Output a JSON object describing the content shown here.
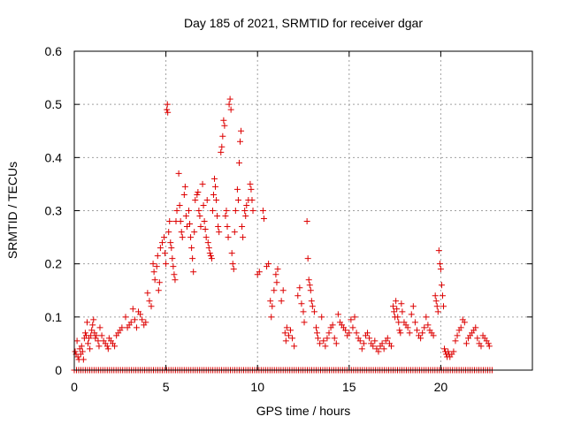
{
  "chart_data": {
    "type": "scatter",
    "title": "Day 185 of 2021, SRMTID for receiver dgar",
    "xlabel": "GPS time / hours",
    "ylabel": "SRMTID / TECUs",
    "xlim": [
      0,
      25
    ],
    "ylim": [
      0,
      0.6
    ],
    "grid": true,
    "marker": "+",
    "color": "#dd0000",
    "xticks": [
      0,
      5,
      10,
      15,
      20
    ],
    "xtick_labels": [
      "0",
      "5",
      "10",
      "15",
      "20"
    ],
    "yticks": [
      0,
      0.1,
      0.2,
      0.3,
      0.4,
      0.5,
      0.6
    ],
    "ytick_labels": [
      "0",
      "0.1",
      "0.2",
      "0.3",
      "0.4",
      "0.5",
      "0.6"
    ],
    "series": [
      {
        "name": "SRMTID",
        "points": [
          [
            0.05,
            0.035
          ],
          [
            0.1,
            0.03
          ],
          [
            0.15,
            0.055
          ],
          [
            0.2,
            0.025
          ],
          [
            0.25,
            0.02
          ],
          [
            0.3,
            0.04
          ],
          [
            0.35,
            0.03
          ],
          [
            0.4,
            0.045
          ],
          [
            0.45,
            0.035
          ],
          [
            0.5,
            0.02
          ],
          [
            0.55,
            0.06
          ],
          [
            0.6,
            0.07
          ],
          [
            0.65,
            0.065
          ],
          [
            0.7,
            0.09
          ],
          [
            0.75,
            0.05
          ],
          [
            0.8,
            0.06
          ],
          [
            0.85,
            0.04
          ],
          [
            0.9,
            0.065
          ],
          [
            0.95,
            0.075
          ],
          [
            1.0,
            0.085
          ],
          [
            1.05,
            0.095
          ],
          [
            1.1,
            0.07
          ],
          [
            1.15,
            0.06
          ],
          [
            1.2,
            0.065
          ],
          [
            1.3,
            0.055
          ],
          [
            1.35,
            0.045
          ],
          [
            1.4,
            0.08
          ],
          [
            1.5,
            0.065
          ],
          [
            1.6,
            0.055
          ],
          [
            1.7,
            0.05
          ],
          [
            1.8,
            0.045
          ],
          [
            1.85,
            0.04
          ],
          [
            1.9,
            0.06
          ],
          [
            2.0,
            0.055
          ],
          [
            2.1,
            0.05
          ],
          [
            2.2,
            0.045
          ],
          [
            2.3,
            0.065
          ],
          [
            2.4,
            0.07
          ],
          [
            2.5,
            0.075
          ],
          [
            2.6,
            0.08
          ],
          [
            2.8,
            0.1
          ],
          [
            2.9,
            0.08
          ],
          [
            3.0,
            0.085
          ],
          [
            3.1,
            0.09
          ],
          [
            3.2,
            0.115
          ],
          [
            3.3,
            0.095
          ],
          [
            3.4,
            0.08
          ],
          [
            3.5,
            0.11
          ],
          [
            3.6,
            0.105
          ],
          [
            3.7,
            0.095
          ],
          [
            3.8,
            0.085
          ],
          [
            3.9,
            0.09
          ],
          [
            4.0,
            0.145
          ],
          [
            4.1,
            0.13
          ],
          [
            4.2,
            0.12
          ],
          [
            4.3,
            0.2
          ],
          [
            4.35,
            0.185
          ],
          [
            4.4,
            0.17
          ],
          [
            4.5,
            0.195
          ],
          [
            4.55,
            0.215
          ],
          [
            4.6,
            0.15
          ],
          [
            4.65,
            0.165
          ],
          [
            4.7,
            0.23
          ],
          [
            4.8,
            0.24
          ],
          [
            4.9,
            0.25
          ],
          [
            4.95,
            0.22
          ],
          [
            5.0,
            0.2
          ],
          [
            5.05,
            0.49
          ],
          [
            5.08,
            0.5
          ],
          [
            5.1,
            0.485
          ],
          [
            5.15,
            0.26
          ],
          [
            5.2,
            0.28
          ],
          [
            5.25,
            0.24
          ],
          [
            5.3,
            0.23
          ],
          [
            5.35,
            0.21
          ],
          [
            5.4,
            0.195
          ],
          [
            5.45,
            0.18
          ],
          [
            5.5,
            0.17
          ],
          [
            5.55,
            0.28
          ],
          [
            5.6,
            0.3
          ],
          [
            5.7,
            0.37
          ],
          [
            5.75,
            0.31
          ],
          [
            5.8,
            0.28
          ],
          [
            5.85,
            0.26
          ],
          [
            5.9,
            0.25
          ],
          [
            6.0,
            0.33
          ],
          [
            6.05,
            0.345
          ],
          [
            6.1,
            0.29
          ],
          [
            6.15,
            0.27
          ],
          [
            6.25,
            0.3
          ],
          [
            6.3,
            0.275
          ],
          [
            6.35,
            0.25
          ],
          [
            6.4,
            0.23
          ],
          [
            6.45,
            0.21
          ],
          [
            6.5,
            0.185
          ],
          [
            6.55,
            0.26
          ],
          [
            6.6,
            0.32
          ],
          [
            6.7,
            0.33
          ],
          [
            6.75,
            0.335
          ],
          [
            6.8,
            0.3
          ],
          [
            6.85,
            0.29
          ],
          [
            6.9,
            0.27
          ],
          [
            7.0,
            0.35
          ],
          [
            7.05,
            0.31
          ],
          [
            7.1,
            0.28
          ],
          [
            7.15,
            0.265
          ],
          [
            7.2,
            0.25
          ],
          [
            7.25,
            0.32
          ],
          [
            7.3,
            0.24
          ],
          [
            7.35,
            0.23
          ],
          [
            7.4,
            0.22
          ],
          [
            7.45,
            0.215
          ],
          [
            7.5,
            0.21
          ],
          [
            7.55,
            0.3
          ],
          [
            7.6,
            0.33
          ],
          [
            7.65,
            0.36
          ],
          [
            7.7,
            0.345
          ],
          [
            7.75,
            0.32
          ],
          [
            7.8,
            0.29
          ],
          [
            7.85,
            0.27
          ],
          [
            7.9,
            0.26
          ],
          [
            8.0,
            0.41
          ],
          [
            8.05,
            0.42
          ],
          [
            8.1,
            0.44
          ],
          [
            8.15,
            0.47
          ],
          [
            8.2,
            0.46
          ],
          [
            8.25,
            0.29
          ],
          [
            8.3,
            0.3
          ],
          [
            8.35,
            0.27
          ],
          [
            8.4,
            0.25
          ],
          [
            8.45,
            0.5
          ],
          [
            8.5,
            0.51
          ],
          [
            8.55,
            0.49
          ],
          [
            8.6,
            0.22
          ],
          [
            8.65,
            0.2
          ],
          [
            8.7,
            0.19
          ],
          [
            8.75,
            0.26
          ],
          [
            8.8,
            0.3
          ],
          [
            8.9,
            0.34
          ],
          [
            8.95,
            0.32
          ],
          [
            9.0,
            0.39
          ],
          [
            9.05,
            0.43
          ],
          [
            9.1,
            0.45
          ],
          [
            9.15,
            0.27
          ],
          [
            9.2,
            0.25
          ],
          [
            9.3,
            0.3
          ],
          [
            9.35,
            0.29
          ],
          [
            9.4,
            0.31
          ],
          [
            9.5,
            0.32
          ],
          [
            9.6,
            0.35
          ],
          [
            9.65,
            0.34
          ],
          [
            9.7,
            0.32
          ],
          [
            9.75,
            0.3
          ],
          [
            10.0,
            0.18
          ],
          [
            10.1,
            0.185
          ],
          [
            10.3,
            0.3
          ],
          [
            10.35,
            0.285
          ],
          [
            10.5,
            0.195
          ],
          [
            10.6,
            0.2
          ],
          [
            10.7,
            0.13
          ],
          [
            10.75,
            0.1
          ],
          [
            10.8,
            0.12
          ],
          [
            10.9,
            0.15
          ],
          [
            11.0,
            0.18
          ],
          [
            11.05,
            0.165
          ],
          [
            11.1,
            0.19
          ],
          [
            11.3,
            0.13
          ],
          [
            11.4,
            0.15
          ],
          [
            11.5,
            0.07
          ],
          [
            11.55,
            0.055
          ],
          [
            11.6,
            0.08
          ],
          [
            11.7,
            0.065
          ],
          [
            11.8,
            0.075
          ],
          [
            11.9,
            0.06
          ],
          [
            12.0,
            0.045
          ],
          [
            12.2,
            0.14
          ],
          [
            12.3,
            0.155
          ],
          [
            12.4,
            0.125
          ],
          [
            12.5,
            0.11
          ],
          [
            12.55,
            0.09
          ],
          [
            12.7,
            0.28
          ],
          [
            12.75,
            0.21
          ],
          [
            12.8,
            0.17
          ],
          [
            12.85,
            0.16
          ],
          [
            12.9,
            0.15
          ],
          [
            12.95,
            0.13
          ],
          [
            13.0,
            0.12
          ],
          [
            13.1,
            0.11
          ],
          [
            13.2,
            0.08
          ],
          [
            13.25,
            0.07
          ],
          [
            13.3,
            0.06
          ],
          [
            13.4,
            0.05
          ],
          [
            13.5,
            0.1
          ],
          [
            13.6,
            0.055
          ],
          [
            13.7,
            0.045
          ],
          [
            13.8,
            0.06
          ],
          [
            13.9,
            0.07
          ],
          [
            14.0,
            0.08
          ],
          [
            14.1,
            0.085
          ],
          [
            14.2,
            0.06
          ],
          [
            14.3,
            0.05
          ],
          [
            14.4,
            0.105
          ],
          [
            14.5,
            0.09
          ],
          [
            14.6,
            0.085
          ],
          [
            14.7,
            0.08
          ],
          [
            14.8,
            0.075
          ],
          [
            14.9,
            0.065
          ],
          [
            15.0,
            0.07
          ],
          [
            15.1,
            0.095
          ],
          [
            15.2,
            0.08
          ],
          [
            15.3,
            0.1
          ],
          [
            15.4,
            0.07
          ],
          [
            15.5,
            0.06
          ],
          [
            15.6,
            0.055
          ],
          [
            15.7,
            0.04
          ],
          [
            15.8,
            0.05
          ],
          [
            15.9,
            0.065
          ],
          [
            16.0,
            0.07
          ],
          [
            16.1,
            0.06
          ],
          [
            16.2,
            0.05
          ],
          [
            16.3,
            0.045
          ],
          [
            16.4,
            0.055
          ],
          [
            16.5,
            0.04
          ],
          [
            16.6,
            0.035
          ],
          [
            16.7,
            0.045
          ],
          [
            16.8,
            0.05
          ],
          [
            16.9,
            0.04
          ],
          [
            17.0,
            0.055
          ],
          [
            17.1,
            0.06
          ],
          [
            17.2,
            0.05
          ],
          [
            17.3,
            0.045
          ],
          [
            17.4,
            0.12
          ],
          [
            17.45,
            0.11
          ],
          [
            17.5,
            0.1
          ],
          [
            17.55,
            0.13
          ],
          [
            17.6,
            0.115
          ],
          [
            17.65,
            0.1
          ],
          [
            17.7,
            0.09
          ],
          [
            17.75,
            0.075
          ],
          [
            17.8,
            0.07
          ],
          [
            17.85,
            0.125
          ],
          [
            17.9,
            0.11
          ],
          [
            18.0,
            0.09
          ],
          [
            18.1,
            0.085
          ],
          [
            18.2,
            0.08
          ],
          [
            18.3,
            0.07
          ],
          [
            18.4,
            0.105
          ],
          [
            18.5,
            0.12
          ],
          [
            18.6,
            0.09
          ],
          [
            18.7,
            0.075
          ],
          [
            18.8,
            0.065
          ],
          [
            18.9,
            0.06
          ],
          [
            19.0,
            0.07
          ],
          [
            19.1,
            0.08
          ],
          [
            19.2,
            0.1
          ],
          [
            19.3,
            0.085
          ],
          [
            19.4,
            0.075
          ],
          [
            19.5,
            0.07
          ],
          [
            19.6,
            0.065
          ],
          [
            19.7,
            0.14
          ],
          [
            19.75,
            0.13
          ],
          [
            19.8,
            0.12
          ],
          [
            19.85,
            0.11
          ],
          [
            19.9,
            0.225
          ],
          [
            19.95,
            0.2
          ],
          [
            20.0,
            0.19
          ],
          [
            20.05,
            0.16
          ],
          [
            20.1,
            0.14
          ],
          [
            20.15,
            0.12
          ],
          [
            20.2,
            0.04
          ],
          [
            20.25,
            0.035
          ],
          [
            20.3,
            0.03
          ],
          [
            20.35,
            0.025
          ],
          [
            20.4,
            0.035
          ],
          [
            20.45,
            0.03
          ],
          [
            20.5,
            0.025
          ],
          [
            20.6,
            0.03
          ],
          [
            20.7,
            0.035
          ],
          [
            20.8,
            0.055
          ],
          [
            20.9,
            0.065
          ],
          [
            21.0,
            0.075
          ],
          [
            21.1,
            0.08
          ],
          [
            21.2,
            0.095
          ],
          [
            21.3,
            0.09
          ],
          [
            21.4,
            0.05
          ],
          [
            21.5,
            0.06
          ],
          [
            21.6,
            0.065
          ],
          [
            21.7,
            0.07
          ],
          [
            21.8,
            0.075
          ],
          [
            21.9,
            0.08
          ],
          [
            22.0,
            0.06
          ],
          [
            22.1,
            0.05
          ],
          [
            22.2,
            0.045
          ],
          [
            22.3,
            0.065
          ],
          [
            22.4,
            0.06
          ],
          [
            22.5,
            0.055
          ],
          [
            22.6,
            0.05
          ],
          [
            22.65,
            0.045
          ]
        ],
        "baseline_x_range": [
          0,
          22.8
        ],
        "baseline_y": 0,
        "baseline_step": 0.12
      }
    ]
  }
}
